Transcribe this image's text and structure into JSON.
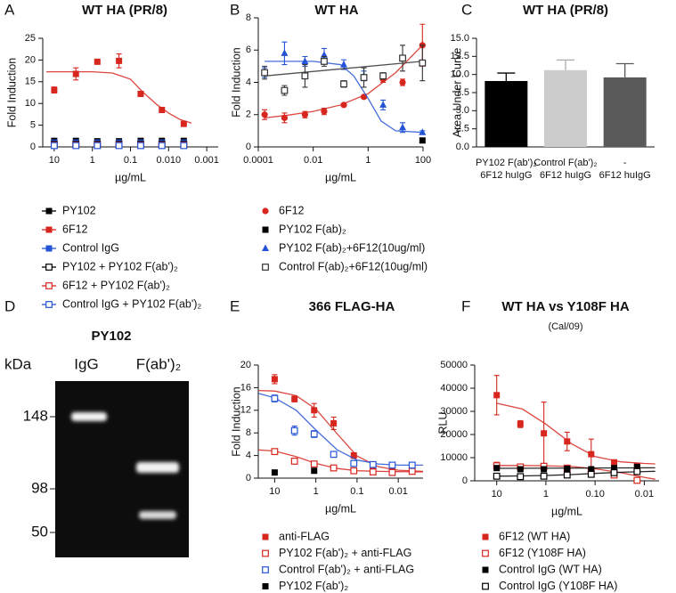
{
  "chart_data": [
    {
      "panel": "A",
      "type": "scatter",
      "title": "WT HA (PR/8)",
      "ylabel": "Fold Induction",
      "xlabel": "µg/mL",
      "xlog": true,
      "xlim": [
        20,
        0.0005
      ],
      "xticks": [
        10,
        1,
        0.1,
        {
          "value": 0.01,
          "label": "0.010"
        },
        0.001
      ],
      "ylim": [
        0,
        25
      ],
      "yticks": [
        0,
        5,
        10,
        15,
        20,
        25
      ],
      "x": [
        10,
        2.7,
        0.74,
        0.2,
        0.054,
        0.015,
        0.004
      ],
      "series": [
        {
          "name": "PY102",
          "color": "#000000",
          "marker": "square",
          "values": [
            1.4,
            1.4,
            1.3,
            1.3,
            1.4,
            1.4,
            1.4
          ]
        },
        {
          "name": "6F12",
          "color": "#d7261e",
          "marker": "square",
          "values": [
            13.1,
            16.8,
            19.6,
            19.8,
            12.2,
            8.5,
            5.3
          ],
          "errors": [
            0.7,
            1.4,
            0.3,
            1.6,
            0.5,
            0.4,
            0.3
          ],
          "fit_x": [
            16,
            1,
            0.3,
            0.1,
            0.05,
            0.02,
            0.01,
            0.005,
            0.0025
          ],
          "fit": [
            17.3,
            17.3,
            17.0,
            15.6,
            12.8,
            9.7,
            7.8,
            6.3,
            5.5
          ]
        },
        {
          "name": "Control IgG",
          "color": "#2453d6",
          "marker": "square",
          "values": [
            1.0,
            1.0,
            1.0,
            1.0,
            1.0,
            1.0,
            1.0
          ]
        },
        {
          "name": "PY102 + PY102 F(ab')₂",
          "color": "#000000",
          "marker": "square-open",
          "values": [
            0.6,
            0.6,
            0.6,
            0.6,
            0.6,
            0.6,
            0.6
          ]
        },
        {
          "name": "6F12 + PY102 F(ab')₂",
          "color": "#d7261e",
          "marker": "square-open",
          "values": [
            0.4,
            0.4,
            0.4,
            0.4,
            0.4,
            0.4,
            0.4
          ]
        },
        {
          "name": "Control IgG + PY102 F(ab')₂",
          "color": "#2453d6",
          "marker": "square-open",
          "values": [
            0.3,
            0.3,
            0.3,
            0.3,
            0.3,
            0.3,
            0.3
          ]
        }
      ]
    },
    {
      "panel": "B",
      "type": "scatter",
      "title": "WT HA",
      "ylabel": "Fold Induction",
      "xlabel": "µg/mL",
      "xlog": true,
      "xlim": [
        0.0001,
        100
      ],
      "xticks": [
        0.0001,
        0.01,
        1,
        100
      ],
      "ylim": [
        0,
        8
      ],
      "yticks": [
        0,
        2,
        4,
        6,
        8
      ],
      "x": [
        0.00017,
        0.0009,
        0.005,
        0.025,
        0.13,
        0.7,
        3.5,
        18,
        95
      ],
      "series": [
        {
          "name": "6F12",
          "color": "#d7261e",
          "marker": "circle",
          "values": [
            2.0,
            1.8,
            2.0,
            2.2,
            2.6,
            3.1,
            4.2,
            4.0,
            6.3
          ],
          "errors": [
            0.3,
            0.3,
            0.2,
            0.2,
            0.1,
            0.1,
            0.2,
            0.2,
            1.3
          ],
          "fit_x": [
            0.00017,
            0.001,
            0.01,
            0.1,
            1,
            10,
            95
          ],
          "fit": [
            1.8,
            1.95,
            2.2,
            2.6,
            3.3,
            4.6,
            6.3
          ]
        },
        {
          "name": "PY102 F(ab)₂",
          "color": "#000000",
          "marker": "square",
          "values": [
            null,
            null,
            null,
            null,
            null,
            null,
            null,
            null,
            0.4
          ]
        },
        {
          "name": "PY102 F(ab)₂+6F12(10ug/ml)",
          "color": "#2453d6",
          "marker": "triangle",
          "values": [
            4.6,
            5.8,
            5.3,
            5.7,
            5.1,
            4.4,
            2.6,
            1.2,
            0.9
          ],
          "errors": [
            0.3,
            0.7,
            0.3,
            0.4,
            0.3,
            0.3,
            0.3,
            0.3,
            0.1
          ],
          "fit_x": [
            0.00017,
            0.01,
            0.1,
            0.3,
            1,
            3,
            10,
            95
          ],
          "fit": [
            5.3,
            5.3,
            5.1,
            4.4,
            3.0,
            1.6,
            1.0,
            0.9
          ]
        },
        {
          "name": "Control F(ab)₂+6F12(10ug/ml)",
          "color": "#333333",
          "marker": "square-open",
          "values": [
            4.6,
            3.5,
            4.4,
            5.3,
            3.9,
            4.3,
            4.4,
            5.5,
            5.2
          ],
          "errors": [
            0.4,
            0.3,
            0.7,
            0.3,
            0.2,
            0.6,
            0.2,
            0.8,
            1.1
          ],
          "fit_x": [
            0.00017,
            95
          ],
          "fit": [
            4.4,
            5.3
          ]
        }
      ]
    },
    {
      "panel": "C",
      "type": "bar",
      "title": "WT HA (PR/8)",
      "ylabel": "Area Under Curve",
      "categories": [
        [
          "PY102 F(ab')₂",
          "6F12 huIgG"
        ],
        [
          "Control F(ab')₂",
          "6F12 huIgG"
        ],
        [
          "-",
          "6F12 huIgG"
        ]
      ],
      "values": [
        9.1,
        10.6,
        9.6
      ],
      "errors": [
        1.1,
        1.4,
        1.9
      ],
      "colors": [
        "#000000",
        "#cccccc",
        "#595959"
      ],
      "ylim": [
        0,
        15
      ],
      "yticks": [
        {
          "value": 0,
          "label": "0.0"
        },
        2.5,
        {
          "value": 5,
          "label": "5.0"
        },
        7.5,
        {
          "value": 10,
          "label": "10.0"
        },
        12.5,
        {
          "value": 15,
          "label": "15.0"
        }
      ]
    },
    {
      "panel": "E",
      "type": "scatter",
      "title": "366 FLAG-HA",
      "ylabel": "Fold Induction",
      "xlabel": "µg/mL",
      "xlog": true,
      "xlim": [
        25,
        0.0025
      ],
      "xticks": [
        10,
        1,
        0.1,
        0.01
      ],
      "ylim": [
        0,
        20
      ],
      "yticks": [
        0,
        4,
        8,
        12,
        16,
        20
      ],
      "x": [
        10,
        3.3,
        1.1,
        0.37,
        0.12,
        0.041,
        0.014,
        0.0046
      ],
      "series": [
        {
          "name": "anti-FLAG",
          "color": "#d7261e",
          "marker": "square",
          "values": [
            17.5,
            14.0,
            12.0,
            9.7,
            4.0,
            1.8,
            1.5,
            1.3
          ],
          "errors": [
            0.8,
            0.5,
            1.2,
            1.1,
            0.5,
            0.3,
            0.2,
            0.2
          ],
          "fit_x": [
            25,
            10,
            3,
            1,
            0.3,
            0.1,
            0.03,
            0.01,
            0.0025
          ],
          "fit": [
            15.5,
            15.4,
            14.6,
            12.2,
            7.8,
            3.9,
            2.0,
            1.4,
            1.2
          ]
        },
        {
          "name": "PY102 F(ab')₂ + anti-FLAG",
          "color": "#d7261e",
          "marker": "square-open",
          "values": [
            4.7,
            3.0,
            2.5,
            1.8,
            1.3,
            1.1,
            1.0,
            1.2
          ],
          "errors": [
            0.4,
            0.2,
            0.2,
            0.2,
            0.1,
            0.1,
            0.1,
            0.1
          ],
          "fit_x": [
            25,
            10,
            3,
            1,
            0.3,
            0.1,
            0.03,
            0.01,
            0.0025
          ],
          "fit": [
            5.0,
            4.8,
            3.8,
            2.6,
            1.7,
            1.3,
            1.2,
            1.15,
            1.1
          ]
        },
        {
          "name": "Control F(ab')₂ + anti-FLAG",
          "color": "#2453d6",
          "marker": "square-open",
          "values": [
            14.1,
            8.4,
            7.8,
            4.2,
            2.6,
            2.4,
            2.3,
            2.3
          ],
          "errors": [
            0.6,
            0.8,
            0.6,
            0.4,
            0.2,
            0.2,
            0.2,
            0.2
          ],
          "fit_x": [
            25,
            10,
            3,
            1,
            0.3,
            0.1,
            0.03,
            0.01,
            0.0025
          ],
          "fit": [
            15.0,
            14.2,
            12.0,
            8.5,
            5.0,
            3.2,
            2.5,
            2.3,
            2.3
          ]
        },
        {
          "name": "PY102 F(ab')₂",
          "color": "#000000",
          "marker": "square",
          "values": [
            1.0,
            null,
            1.3,
            null,
            null,
            null,
            null,
            null
          ]
        }
      ]
    },
    {
      "panel": "F",
      "type": "scatter",
      "title": "WT HA vs Y108F HA",
      "subtitle": "(Cal/09)",
      "ylabel": "RLU",
      "xlabel": "µg/mL",
      "xlog": true,
      "xlim": [
        28,
        0.005
      ],
      "xticks": [
        10,
        1,
        {
          "value": 0.1,
          "label": "0.10"
        },
        0.01
      ],
      "ylim": [
        0,
        50000
      ],
      "yticks": [
        0,
        10000,
        20000,
        30000,
        40000,
        50000
      ],
      "x": [
        10,
        3.3,
        1.1,
        0.37,
        0.12,
        0.041,
        0.014
      ],
      "series": [
        {
          "name": "6F12 (WT HA)",
          "color": "#d7261e",
          "marker": "square",
          "values": [
            37000,
            24500,
            20500,
            17000,
            11500,
            8000,
            6500
          ],
          "errors": [
            8500,
            1500,
            13500,
            4000,
            6500,
            1000,
            800
          ],
          "fit_x": [
            10,
            3,
            1,
            0.3,
            0.1,
            0.03,
            0.01,
            0.006
          ],
          "fit": [
            33500,
            31000,
            24500,
            16000,
            10500,
            8200,
            7500,
            7300
          ]
        },
        {
          "name": "6F12 (Y108F HA)",
          "color": "#d7261e",
          "marker": "square-open",
          "values": [
            6500,
            6000,
            6300,
            5500,
            4000,
            2500,
            200
          ],
          "errors": [
            1500,
            800,
            600,
            500,
            500,
            400,
            200
          ],
          "fit_x": [
            10,
            3,
            1,
            0.3,
            0.1,
            0.03,
            0.01,
            0.006
          ],
          "fit": [
            6600,
            6600,
            6500,
            6200,
            5200,
            3500,
            1500,
            700
          ]
        },
        {
          "name": "Control IgG (WT HA)",
          "color": "#000000",
          "marker": "square",
          "values": [
            5500,
            5000,
            5000,
            5200,
            5000,
            5500,
            6000
          ],
          "errors": [
            600,
            500,
            500,
            500,
            500,
            600,
            800
          ],
          "fit_x": [
            10,
            0.006
          ],
          "fit": [
            5400,
            5600
          ]
        },
        {
          "name": "Control IgG (Y108F HA)",
          "color": "#000000",
          "marker": "square-open",
          "values": [
            2000,
            1800,
            2000,
            2500,
            2800,
            3500,
            4000
          ],
          "errors": [
            300,
            300,
            300,
            300,
            300,
            400,
            400
          ],
          "fit_x": [
            10,
            3,
            1,
            0.3,
            0.1,
            0.03,
            0.01,
            0.006
          ],
          "fit": [
            2000,
            2100,
            2300,
            2700,
            3200,
            3700,
            4000,
            4100
          ]
        }
      ]
    }
  ],
  "gel": {
    "panel": "D",
    "title": "PY102",
    "unit": "kDa",
    "lanes": [
      "IgG",
      "F(ab')₂"
    ],
    "markers": [
      148,
      98,
      50
    ]
  }
}
